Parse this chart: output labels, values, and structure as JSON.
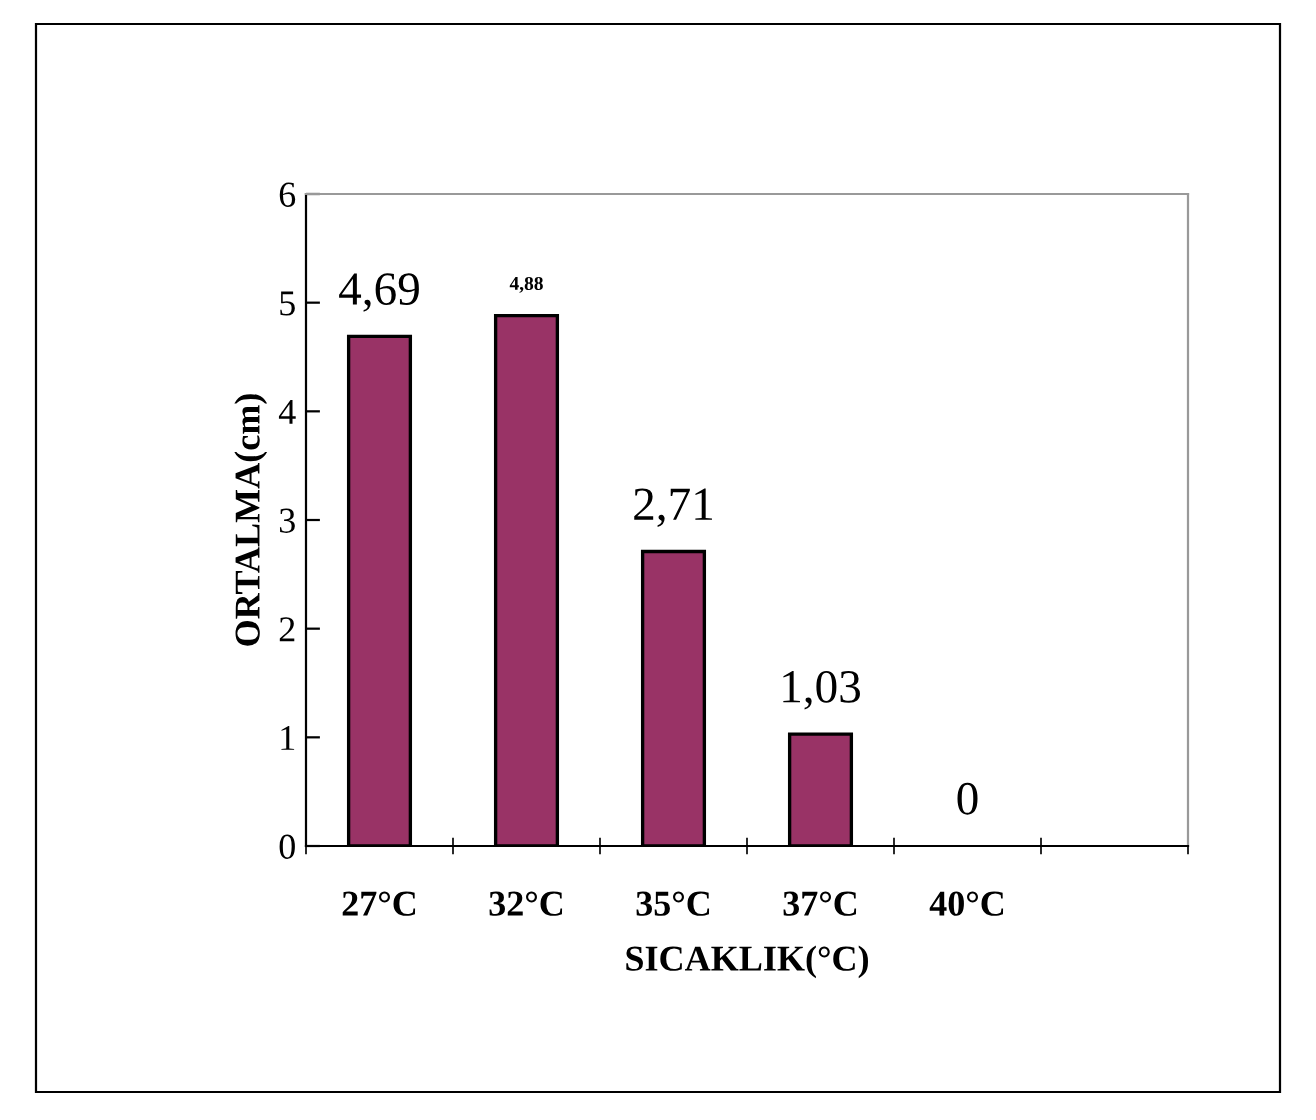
{
  "chart_data": {
    "type": "bar",
    "xlabel": "SICAKLIK(°C)",
    "ylabel": "ORTALMA(cm)",
    "categories": [
      "27°C",
      "32°C",
      "35°C",
      "37°C",
      "40°C",
      null
    ],
    "values": [
      4.69,
      4.88,
      2.71,
      1.03,
      0,
      null
    ],
    "value_labels": [
      "4,69",
      "4,88",
      "2,71",
      "1,03",
      "0",
      null
    ],
    "color": "#993366",
    "ylim": [
      0,
      6
    ],
    "yticks": [
      0,
      1,
      2,
      3,
      4,
      5,
      6
    ],
    "grid": false,
    "legend": false
  }
}
